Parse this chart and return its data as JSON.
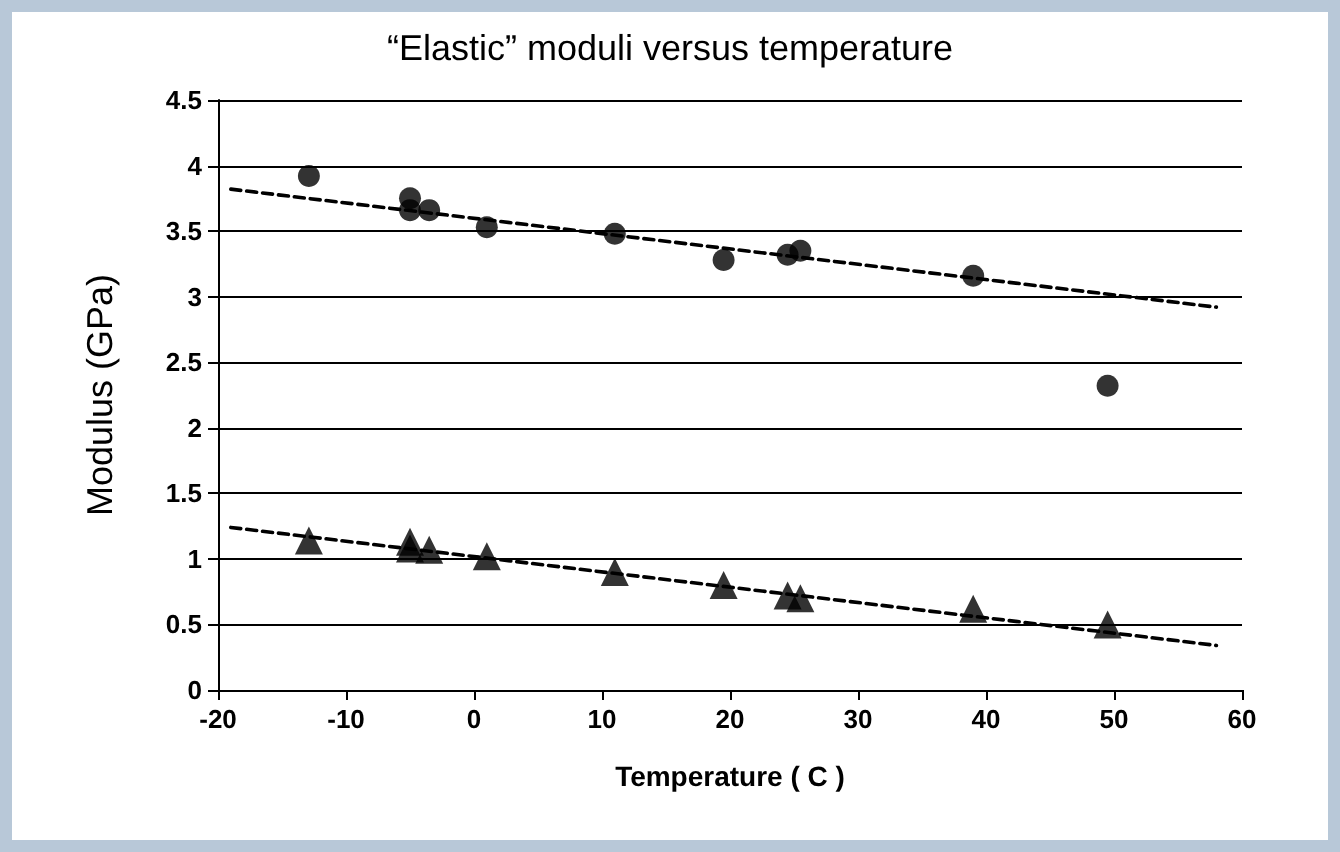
{
  "chart_data": {
    "type": "scatter",
    "title": "“Elastic” moduli versus temperature",
    "xlabel": "Temperature ( C )",
    "ylabel": "Modulus (GPa)",
    "xlim": [
      -20,
      60
    ],
    "xticks": [
      -20,
      -10,
      0,
      10,
      20,
      30,
      40,
      50,
      60
    ],
    "ylim": [
      0,
      4.5
    ],
    "yticks": [
      0,
      0.5,
      1,
      1.5,
      2,
      2.5,
      3,
      3.5,
      4,
      4.5
    ],
    "grid": "y",
    "series": [
      {
        "marker": "circle",
        "color": "#000000",
        "x": [
          -12.9,
          -5,
          -5,
          -3.5,
          1,
          11,
          19.5,
          24.5,
          25.5,
          39,
          49.5
        ],
        "values": [
          3.92,
          3.75,
          3.66,
          3.66,
          3.53,
          3.48,
          3.28,
          3.32,
          3.35,
          3.16,
          2.32
        ]
      },
      {
        "marker": "triangle",
        "color": "#000000",
        "x": [
          -12.9,
          -5,
          -5,
          -3.5,
          1,
          11,
          19.5,
          24.5,
          25.5,
          39,
          49.5
        ],
        "values": [
          1.14,
          1.13,
          1.08,
          1.07,
          1.02,
          0.9,
          0.8,
          0.72,
          0.7,
          0.62,
          0.5
        ]
      },
      {
        "type": "line",
        "line_style": "dashed",
        "marker": "none",
        "color": "#000000",
        "x": [
          -19,
          58
        ],
        "values": [
          3.82,
          2.92
        ]
      },
      {
        "type": "line",
        "line_style": "dashed",
        "marker": "none",
        "color": "#000000",
        "x": [
          -19,
          58
        ],
        "values": [
          1.24,
          0.34
        ]
      }
    ]
  }
}
